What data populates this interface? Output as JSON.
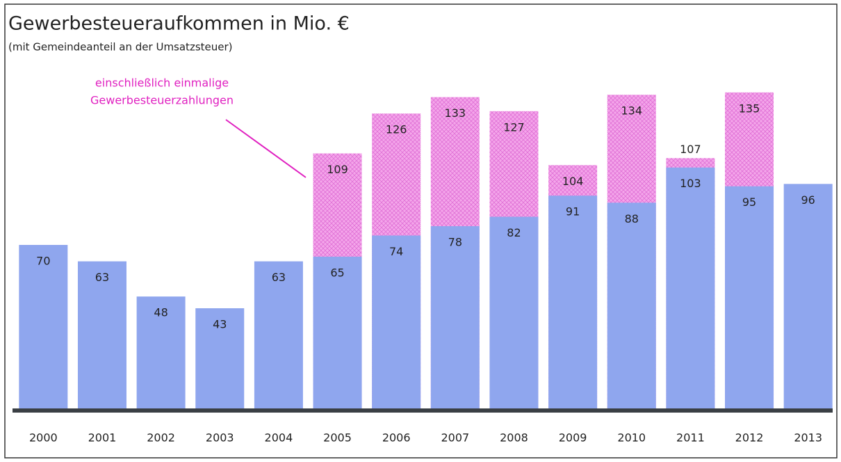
{
  "chart_data": {
    "type": "bar",
    "title": "Gewerbesteueraufkommen in Mio. €",
    "subtitle": "(mit Gemeindeanteil an der Umsatzsteuer)",
    "annotation": [
      "einschließlich einmalige",
      "Gewerbesteuerzahlungen"
    ],
    "categories": [
      "2000",
      "2001",
      "2002",
      "2003",
      "2004",
      "2005",
      "2006",
      "2007",
      "2008",
      "2009",
      "2010",
      "2011",
      "2012",
      "2013"
    ],
    "series": [
      {
        "color": "#f2a0e6",
        "values": [
          null,
          null,
          null,
          null,
          null,
          109,
          126,
          133,
          127,
          104,
          134,
          107,
          135,
          null
        ]
      },
      {
        "color": "#8fa6ee",
        "values": [
          70,
          63,
          48,
          43,
          63,
          65,
          74,
          78,
          82,
          91,
          88,
          103,
          95,
          96
        ]
      }
    ],
    "ylim": [
      0,
      140
    ]
  }
}
